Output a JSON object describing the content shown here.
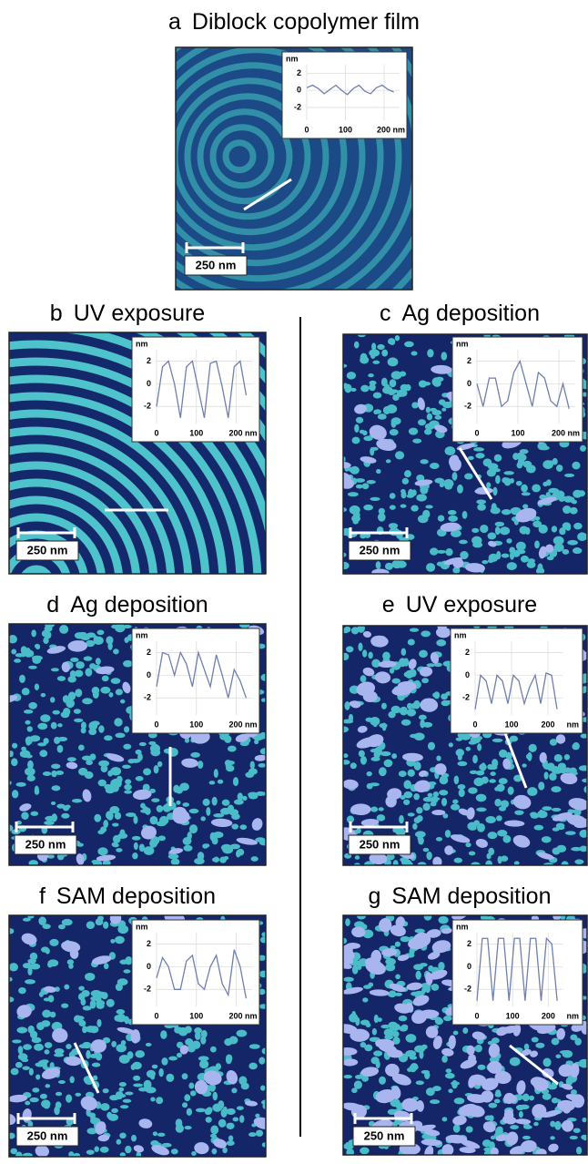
{
  "panels": [
    {
      "label": "a",
      "title": "Diblock copolymer film",
      "scale_bar": "250 nm",
      "profile": {
        "y_unit": "nm",
        "yticks": [
          2,
          0,
          -2
        ],
        "ylim": [
          -3.5,
          3
        ],
        "xlim": [
          0,
          240
        ],
        "xticks": [
          0,
          100,
          {
            "value": 200,
            "label": "200 nm"
          }
        ],
        "x": [
          0,
          15,
          30,
          45,
          60,
          75,
          90,
          105,
          120,
          135,
          150,
          165,
          180,
          195,
          210,
          225
        ],
        "values": [
          0.3,
          0.6,
          0.2,
          -0.4,
          0.1,
          0.6,
          0,
          -0.5,
          0.2,
          0.6,
          -0.1,
          -0.4,
          0.3,
          0.6,
          0.1,
          -0.2
        ]
      }
    },
    {
      "label": "b",
      "title": "UV exposure",
      "scale_bar": "250 nm",
      "profile": {
        "y_unit": "nm",
        "yticks": [
          2,
          0,
          -2
        ],
        "ylim": [
          -3.5,
          3
        ],
        "xlim": [
          0,
          240
        ],
        "xticks": [
          0,
          100,
          {
            "value": 200,
            "label": "200 nm"
          }
        ],
        "x": [
          0,
          15,
          30,
          45,
          60,
          75,
          90,
          105,
          120,
          135,
          150,
          165,
          180,
          195,
          210,
          225
        ],
        "values": [
          -2,
          1.5,
          2,
          0,
          -3,
          1.5,
          2,
          -0.5,
          -3,
          1.8,
          2,
          -0.3,
          -3,
          1.5,
          2,
          -1
        ]
      }
    },
    {
      "label": "c",
      "title": "Ag deposition",
      "scale_bar": "250 nm",
      "profile": {
        "y_unit": "nm",
        "yticks": [
          2,
          0,
          -2
        ],
        "ylim": [
          -3.5,
          3
        ],
        "xlim": [
          0,
          240
        ],
        "xticks": [
          0,
          100,
          {
            "value": 200,
            "label": "200 nm"
          }
        ],
        "x": [
          0,
          15,
          30,
          45,
          60,
          75,
          90,
          105,
          120,
          135,
          150,
          165,
          180,
          195,
          210,
          225
        ],
        "values": [
          0,
          -2,
          0.5,
          0.5,
          -2,
          -1.5,
          1,
          2,
          0,
          -2,
          1,
          0.5,
          -1.5,
          -2,
          0,
          -2.2
        ]
      }
    },
    {
      "label": "d",
      "title": "Ag deposition",
      "scale_bar": "250 nm",
      "profile": {
        "y_unit": "nm",
        "yticks": [
          2,
          0,
          -2
        ],
        "ylim": [
          -3.5,
          3
        ],
        "xlim": [
          0,
          240
        ],
        "xticks": [
          0,
          100,
          {
            "value": 200,
            "label": "200 nm"
          }
        ],
        "x": [
          0,
          15,
          30,
          45,
          60,
          75,
          90,
          105,
          120,
          135,
          150,
          165,
          180,
          195,
          210,
          225
        ],
        "values": [
          -1,
          2,
          1.8,
          0,
          2,
          1,
          -1,
          2,
          0.5,
          -1,
          1.8,
          0,
          -2,
          0.5,
          -0.5,
          -2
        ]
      }
    },
    {
      "label": "e",
      "title": "UV exposure",
      "scale_bar": "250 nm",
      "profile": {
        "y_unit": "nm",
        "yticks": [
          2,
          0,
          -2
        ],
        "ylim": [
          -3.5,
          3
        ],
        "xlim": [
          0,
          240
        ],
        "xticks": [
          0,
          100,
          200
        ],
        "x_unit": "nm",
        "x": [
          0,
          15,
          30,
          45,
          60,
          75,
          90,
          105,
          120,
          135,
          150,
          165,
          180,
          195,
          210,
          225
        ],
        "values": [
          -3,
          0,
          -0.5,
          -2.5,
          0,
          -0.5,
          -2.5,
          0,
          -0.5,
          -2.5,
          -1,
          0,
          -2.5,
          0.2,
          0,
          -3
        ]
      }
    },
    {
      "label": "f",
      "title": "SAM deposition",
      "scale_bar": "250 nm",
      "profile": {
        "y_unit": "nm",
        "yticks": [
          2,
          0,
          -2
        ],
        "ylim": [
          -3.5,
          3
        ],
        "xlim": [
          0,
          240
        ],
        "xticks": [
          0,
          100,
          {
            "value": 200,
            "label": "200 nm"
          }
        ],
        "x": [
          0,
          15,
          30,
          45,
          60,
          75,
          90,
          105,
          120,
          135,
          150,
          165,
          180,
          195,
          210,
          225
        ],
        "values": [
          -1,
          0.8,
          0,
          -2,
          -2,
          0.5,
          1,
          -1.5,
          -2,
          0,
          1,
          -1.5,
          -2.5,
          1.5,
          0,
          -2.8
        ]
      }
    },
    {
      "label": "g",
      "title": "SAM deposition",
      "scale_bar": "250 nm",
      "profile": {
        "y_unit": "nm",
        "yticks": [
          2,
          0,
          -2
        ],
        "ylim": [
          -3.5,
          3
        ],
        "xlim": [
          0,
          240
        ],
        "xticks": [
          0,
          100,
          200
        ],
        "x_unit": "nm",
        "x": [
          0,
          15,
          30,
          45,
          60,
          75,
          90,
          105,
          120,
          135,
          150,
          165,
          180,
          195,
          210,
          225
        ],
        "values": [
          -3,
          2.5,
          2.5,
          -3,
          2.5,
          2.5,
          -3,
          2.5,
          2.5,
          -3,
          2.5,
          2.5,
          -3,
          2.5,
          2,
          -3
        ]
      }
    }
  ]
}
